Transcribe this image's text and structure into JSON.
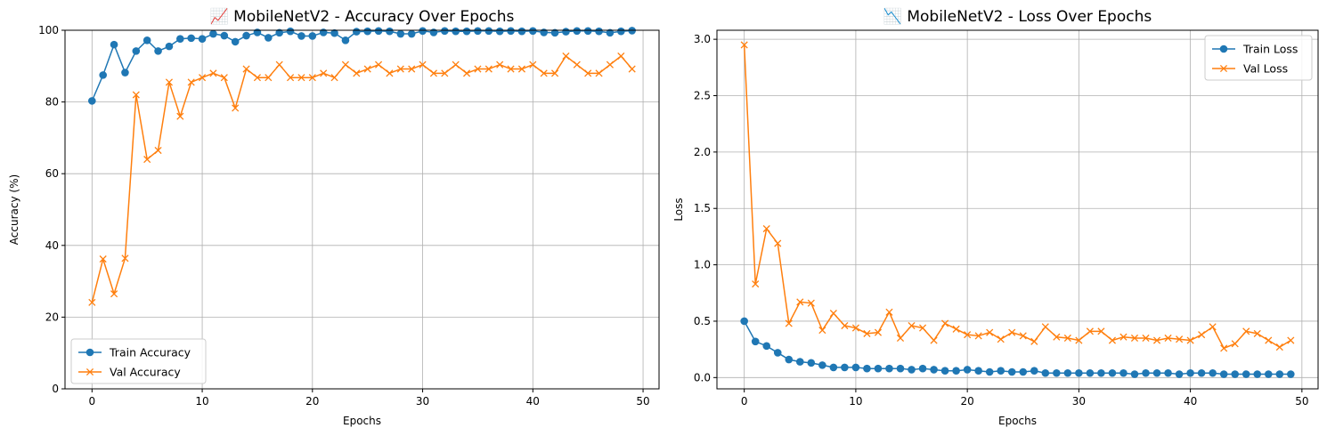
{
  "chart_data": [
    {
      "type": "line",
      "title": "📈 MobileNetV2 - Accuracy Over Epochs",
      "xlabel": "Epochs",
      "ylabel": "Accuracy (%)",
      "xlim": [
        -2.45,
        51.45
      ],
      "ylim": [
        0,
        100
      ],
      "xticks": [
        0,
        10,
        20,
        30,
        40,
        50
      ],
      "yticks": [
        0,
        20,
        40,
        60,
        80,
        100
      ],
      "xtick_labels": [
        "0",
        "10",
        "20",
        "30",
        "40",
        "50"
      ],
      "ytick_labels": [
        "0",
        "20",
        "40",
        "60",
        "80",
        "100"
      ],
      "grid": true,
      "legend_position": "bottom-left",
      "x": [
        0,
        1,
        2,
        3,
        4,
        5,
        6,
        7,
        8,
        9,
        10,
        11,
        12,
        13,
        14,
        15,
        16,
        17,
        18,
        19,
        20,
        21,
        22,
        23,
        24,
        25,
        26,
        27,
        28,
        29,
        30,
        31,
        32,
        33,
        34,
        35,
        36,
        37,
        38,
        39,
        40,
        41,
        42,
        43,
        44,
        45,
        46,
        47,
        48,
        49
      ],
      "series": [
        {
          "name": "Train Accuracy",
          "color": "#1f77b4",
          "marker": "circle",
          "values": [
            80.3,
            87.5,
            96.0,
            88.2,
            94.2,
            97.2,
            94.2,
            95.5,
            97.6,
            97.8,
            97.6,
            99.0,
            98.5,
            96.8,
            98.5,
            99.4,
            97.9,
            99.3,
            99.7,
            98.4,
            98.4,
            99.4,
            99.2,
            97.2,
            99.6,
            99.7,
            99.8,
            99.7,
            99.0,
            99.0,
            99.8,
            99.4,
            99.8,
            99.7,
            99.7,
            99.8,
            99.8,
            99.7,
            99.8,
            99.7,
            99.8,
            99.4,
            99.3,
            99.6,
            99.8,
            99.8,
            99.7,
            99.3,
            99.7,
            99.9
          ]
        },
        {
          "name": "Val Accuracy",
          "color": "#ff7f0e",
          "marker": "x",
          "values": [
            24.1,
            36.2,
            26.5,
            36.4,
            82.0,
            64.0,
            66.5,
            85.5,
            76.0,
            85.5,
            86.8,
            88.0,
            86.8,
            78.3,
            89.2,
            86.8,
            86.8,
            90.4,
            86.8,
            86.8,
            86.8,
            88.0,
            86.8,
            90.4,
            88.0,
            89.2,
            90.4,
            88.0,
            89.2,
            89.2,
            90.4,
            88.0,
            88.0,
            90.4,
            88.0,
            89.2,
            89.2,
            90.4,
            89.2,
            89.2,
            90.4,
            88.0,
            88.0,
            92.8,
            90.4,
            88.0,
            88.0,
            90.4,
            92.8,
            89.2
          ]
        }
      ]
    },
    {
      "type": "line",
      "title": "📉 MobileNetV2 - Loss Over Epochs",
      "xlabel": "Epochs",
      "ylabel": "Loss",
      "xlim": [
        -2.45,
        51.45
      ],
      "ylim": [
        -0.1,
        3.08
      ],
      "xticks": [
        0,
        10,
        20,
        30,
        40,
        50
      ],
      "yticks": [
        0.0,
        0.5,
        1.0,
        1.5,
        2.0,
        2.5,
        3.0
      ],
      "xtick_labels": [
        "0",
        "10",
        "20",
        "30",
        "40",
        "50"
      ],
      "ytick_labels": [
        "0.0",
        "0.5",
        "1.0",
        "1.5",
        "2.0",
        "2.5",
        "3.0"
      ],
      "grid": true,
      "legend_position": "top-right",
      "x": [
        0,
        1,
        2,
        3,
        4,
        5,
        6,
        7,
        8,
        9,
        10,
        11,
        12,
        13,
        14,
        15,
        16,
        17,
        18,
        19,
        20,
        21,
        22,
        23,
        24,
        25,
        26,
        27,
        28,
        29,
        30,
        31,
        32,
        33,
        34,
        35,
        36,
        37,
        38,
        39,
        40,
        41,
        42,
        43,
        44,
        45,
        46,
        47,
        48,
        49
      ],
      "series": [
        {
          "name": "Train Loss",
          "color": "#1f77b4",
          "marker": "circle",
          "values": [
            0.5,
            0.32,
            0.28,
            0.22,
            0.16,
            0.14,
            0.13,
            0.11,
            0.09,
            0.09,
            0.09,
            0.08,
            0.08,
            0.08,
            0.08,
            0.07,
            0.08,
            0.07,
            0.06,
            0.06,
            0.07,
            0.06,
            0.05,
            0.06,
            0.05,
            0.05,
            0.06,
            0.04,
            0.04,
            0.04,
            0.04,
            0.04,
            0.04,
            0.04,
            0.04,
            0.03,
            0.04,
            0.04,
            0.04,
            0.03,
            0.04,
            0.04,
            0.04,
            0.03,
            0.03,
            0.03,
            0.03,
            0.03,
            0.03,
            0.03
          ]
        },
        {
          "name": "Val Loss",
          "color": "#ff7f0e",
          "marker": "x",
          "values": [
            2.95,
            0.83,
            1.32,
            1.19,
            0.48,
            0.67,
            0.66,
            0.42,
            0.57,
            0.46,
            0.44,
            0.39,
            0.4,
            0.58,
            0.35,
            0.46,
            0.44,
            0.33,
            0.48,
            0.43,
            0.38,
            0.37,
            0.4,
            0.34,
            0.4,
            0.37,
            0.32,
            0.45,
            0.36,
            0.35,
            0.33,
            0.41,
            0.41,
            0.33,
            0.36,
            0.35,
            0.35,
            0.33,
            0.35,
            0.34,
            0.33,
            0.38,
            0.45,
            0.26,
            0.3,
            0.41,
            0.39,
            0.33,
            0.27,
            0.33
          ]
        }
      ]
    }
  ]
}
